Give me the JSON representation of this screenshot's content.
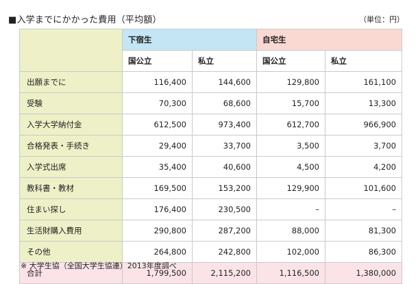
{
  "title": "■入学までにかかった費用（平均額）",
  "unit": "（単位：円）",
  "table": {
    "groups": [
      "下宿生",
      "自宅生"
    ],
    "subheaders": [
      "国公立",
      "私立",
      "国公立",
      "私立"
    ],
    "rows": [
      {
        "label": "出願までに",
        "values": [
          "116,400",
          "144,600",
          "129,800",
          "161,100"
        ]
      },
      {
        "label": "受験",
        "values": [
          "70,300",
          "68,600",
          "15,700",
          "13,300"
        ]
      },
      {
        "label": "入学大学納付金",
        "values": [
          "612,500",
          "973,400",
          "612,700",
          "966,900"
        ]
      },
      {
        "label": "合格発表・手続き",
        "values": [
          "29,400",
          "33,700",
          "3,500",
          "3,700"
        ]
      },
      {
        "label": "入学式出席",
        "values": [
          "35,400",
          "40,600",
          "4,500",
          "4,200"
        ]
      },
      {
        "label": "教科書・教材",
        "values": [
          "169,500",
          "153,200",
          "129,900",
          "101,600"
        ]
      },
      {
        "label": "住まい探し",
        "values": [
          "176,400",
          "230,500",
          "–",
          "–"
        ]
      },
      {
        "label": "生活財購入費用",
        "values": [
          "290,800",
          "287,200",
          "88,000",
          "81,300"
        ]
      },
      {
        "label": "その他",
        "values": [
          "264,800",
          "242,800",
          "102,000",
          "86,300"
        ]
      }
    ],
    "total": {
      "label": "合計",
      "values": [
        "1,799,500",
        "2,115,200",
        "1,116,500",
        "1,380,000"
      ]
    }
  },
  "note": "※ 大学生協（全国大学生協連）2013年度調べ"
}
